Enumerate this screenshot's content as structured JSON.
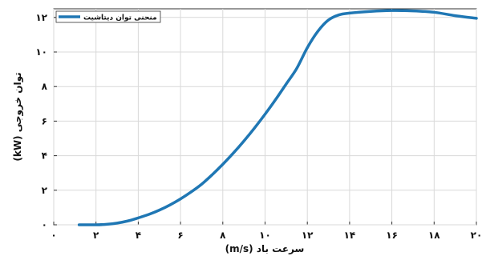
{
  "chart_data": {
    "type": "line",
    "xlabel": "سرعت باد (m/s)",
    "ylabel": "توان خروجی (kW)",
    "xlim": [
      0,
      20
    ],
    "ylim": [
      0,
      12.5
    ],
    "x_ticks": [
      0,
      2,
      4,
      6,
      8,
      10,
      12,
      14,
      16,
      18,
      20
    ],
    "x_tick_labels": [
      "۰",
      "۲",
      "۴",
      "۶",
      "۸",
      "۱۰",
      "۱۲",
      "۱۴",
      "۱۶",
      "۱۸",
      "۲۰"
    ],
    "y_ticks": [
      0,
      2,
      4,
      6,
      8,
      10,
      12
    ],
    "y_tick_labels": [
      "۰",
      "۲",
      "۴",
      "۶",
      "۸",
      "۱۰",
      "۱۲"
    ],
    "grid": true,
    "legend_position": "top-left",
    "series": [
      {
        "name": "منحنی توان دیتاشیت",
        "color": "#1f77b4",
        "x": [
          1.2,
          2.0,
          2.5,
          3.0,
          3.5,
          4.0,
          4.5,
          5.0,
          5.5,
          6.0,
          6.5,
          7.0,
          7.5,
          8.0,
          8.5,
          9.0,
          9.5,
          10.0,
          10.5,
          11.0,
          11.5,
          12.0,
          12.5,
          13.0,
          13.5,
          14.0,
          15.0,
          16.0,
          17.0,
          18.0,
          19.0,
          20.0
        ],
        "values": [
          0.0,
          0.0,
          0.03,
          0.1,
          0.22,
          0.4,
          0.6,
          0.85,
          1.15,
          1.5,
          1.9,
          2.35,
          2.9,
          3.5,
          4.15,
          4.85,
          5.6,
          6.4,
          7.25,
          8.15,
          9.05,
          10.25,
          11.2,
          11.85,
          12.15,
          12.25,
          12.35,
          12.4,
          12.38,
          12.3,
          12.1,
          11.95
        ]
      }
    ]
  }
}
